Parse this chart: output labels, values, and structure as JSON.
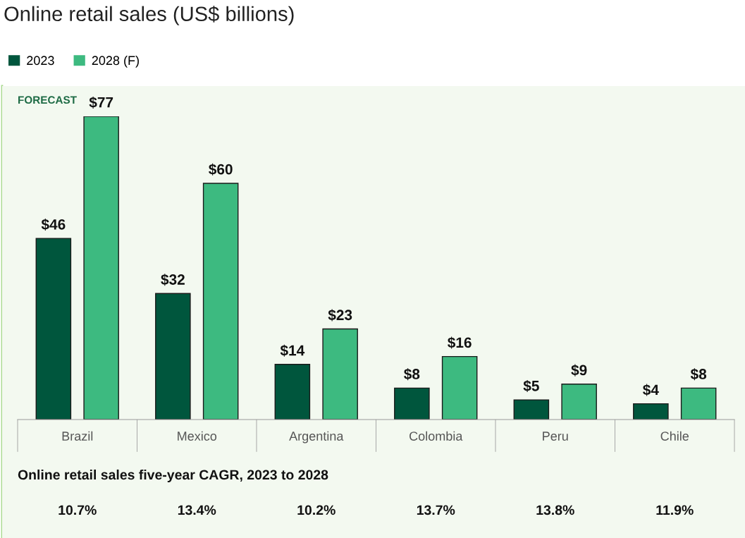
{
  "chart_data": {
    "type": "bar",
    "title": "Online retail sales (US$ billions)",
    "categories": [
      "Brazil",
      "Mexico",
      "Argentina",
      "Colombia",
      "Peru",
      "Chile"
    ],
    "series": [
      {
        "name": "2023",
        "color": "#00563d",
        "values": [
          46,
          32,
          14,
          8,
          5,
          4
        ],
        "value_labels": [
          "$46",
          "$32",
          "$14",
          "$8",
          "$5",
          "$4"
        ]
      },
      {
        "name": "2028 (F)",
        "color": "#3dba80",
        "values": [
          77,
          60,
          23,
          16,
          9,
          8
        ],
        "value_labels": [
          "$77",
          "$60",
          "$23",
          "$16",
          "$9",
          "$8"
        ]
      }
    ],
    "annotations": [
      "FORECAST",
      "Online retail sales five-year CAGR, 2023 to 2028",
      "10.7%",
      "13.4%",
      "10.2%",
      "13.7%",
      "13.8%",
      "11.9%"
    ],
    "legend": "top left",
    "grid": false
  }
}
